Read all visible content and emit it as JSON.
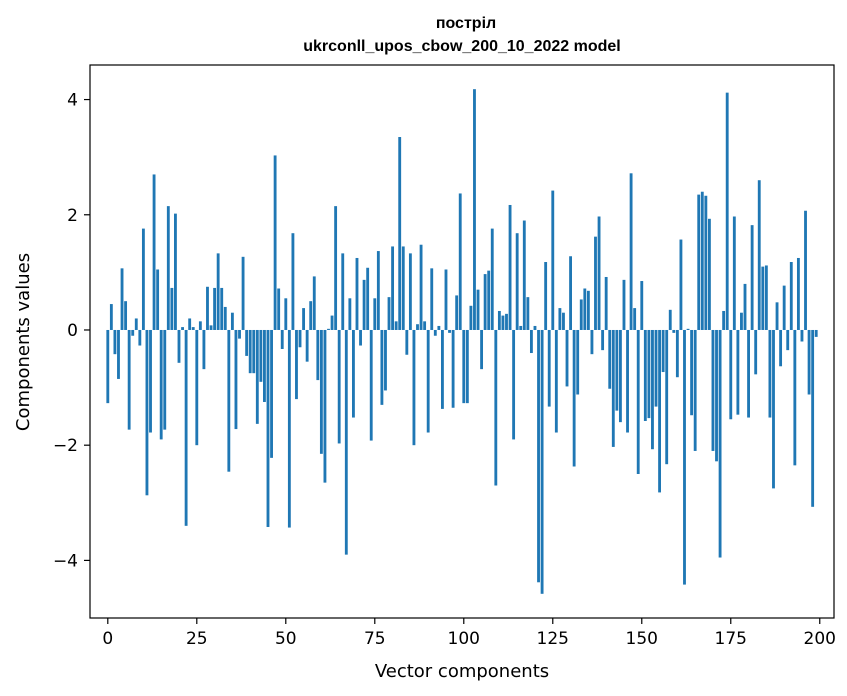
{
  "chart_data": {
    "type": "bar",
    "title_line1": "постріл",
    "title_line2": "ukrconll_upos_cbow_200_10_2022 model",
    "xlabel": "Vector components",
    "ylabel": "Components values",
    "bar_color": "#1f77b4",
    "xlim": [
      -5,
      204
    ],
    "ylim": [
      -5,
      4.6
    ],
    "grid": false,
    "x_ticks": [
      0,
      25,
      50,
      75,
      100,
      125,
      150,
      175,
      200
    ],
    "x_tick_labels": [
      "0",
      "25",
      "50",
      "75",
      "100",
      "125",
      "150",
      "175",
      "200"
    ],
    "y_ticks": [
      -4,
      -2,
      0,
      2,
      4
    ],
    "y_tick_labels": [
      "−4",
      "−2",
      "0",
      "2",
      "4"
    ],
    "x": [
      0,
      1,
      2,
      3,
      4,
      5,
      6,
      7,
      8,
      9,
      10,
      11,
      12,
      13,
      14,
      15,
      16,
      17,
      18,
      19,
      20,
      21,
      22,
      23,
      24,
      25,
      26,
      27,
      28,
      29,
      30,
      31,
      32,
      33,
      34,
      35,
      36,
      37,
      38,
      39,
      40,
      41,
      42,
      43,
      44,
      45,
      46,
      47,
      48,
      49,
      50,
      51,
      52,
      53,
      54,
      55,
      56,
      57,
      58,
      59,
      60,
      61,
      62,
      63,
      64,
      65,
      66,
      67,
      68,
      69,
      70,
      71,
      72,
      73,
      74,
      75,
      76,
      77,
      78,
      79,
      80,
      81,
      82,
      83,
      84,
      85,
      86,
      87,
      88,
      89,
      90,
      91,
      92,
      93,
      94,
      95,
      96,
      97,
      98,
      99,
      100,
      101,
      102,
      103,
      104,
      105,
      106,
      107,
      108,
      109,
      110,
      111,
      112,
      113,
      114,
      115,
      116,
      117,
      118,
      119,
      120,
      121,
      122,
      123,
      124,
      125,
      126,
      127,
      128,
      129,
      130,
      131,
      132,
      133,
      134,
      135,
      136,
      137,
      138,
      139,
      140,
      141,
      142,
      143,
      144,
      145,
      146,
      147,
      148,
      149,
      150,
      151,
      152,
      153,
      154,
      155,
      156,
      157,
      158,
      159,
      160,
      161,
      162,
      163,
      164,
      165,
      166,
      167,
      168,
      169,
      170,
      171,
      172,
      173,
      174,
      175,
      176,
      177,
      178,
      179,
      180,
      181,
      182,
      183,
      184,
      185,
      186,
      187,
      188,
      189,
      190,
      191,
      192,
      193,
      194,
      195,
      196,
      197,
      198,
      199
    ],
    "values": [
      -1.27,
      0.45,
      -0.42,
      -0.85,
      1.07,
      0.5,
      -1.73,
      -0.1,
      0.2,
      -0.27,
      1.76,
      -2.87,
      -1.78,
      2.7,
      1.05,
      -1.9,
      -1.73,
      2.15,
      0.73,
      2.02,
      -0.57,
      0.05,
      -3.4,
      0.2,
      0.05,
      -2.0,
      0.15,
      -0.68,
      0.75,
      0.08,
      0.73,
      1.33,
      0.73,
      0.4,
      -2.46,
      0.3,
      -1.72,
      -0.15,
      1.27,
      -0.45,
      -0.75,
      -0.75,
      -1.63,
      -0.9,
      -1.25,
      -3.42,
      -2.22,
      3.03,
      0.72,
      -0.33,
      0.55,
      -3.43,
      1.68,
      -1.2,
      -0.3,
      0.38,
      -0.55,
      0.5,
      0.93,
      -0.87,
      -2.15,
      -2.65,
      0.02,
      0.25,
      2.15,
      -1.97,
      1.33,
      -3.9,
      0.55,
      -1.52,
      1.25,
      -0.27,
      0.87,
      1.08,
      -1.92,
      0.55,
      1.37,
      -1.3,
      -1.05,
      0.57,
      1.45,
      0.15,
      3.35,
      1.45,
      -0.43,
      1.33,
      -2.0,
      0.1,
      1.48,
      0.15,
      -1.78,
      1.07,
      -0.1,
      0.07,
      -1.37,
      1.05,
      -0.05,
      -1.35,
      0.6,
      2.37,
      -1.27,
      -1.27,
      0.42,
      4.18,
      0.7,
      -0.68,
      0.97,
      1.03,
      1.76,
      -2.7,
      0.33,
      0.25,
      0.28,
      2.17,
      -1.9,
      1.68,
      0.07,
      1.9,
      0.57,
      -0.4,
      0.07,
      -4.38,
      -4.58,
      1.18,
      -1.33,
      2.42,
      -1.78,
      0.38,
      0.3,
      -0.98,
      1.28,
      -2.37,
      -1.12,
      0.53,
      0.72,
      0.68,
      -0.42,
      1.62,
      1.97,
      -0.35,
      0.92,
      -1.02,
      -2.03,
      -1.4,
      -1.6,
      0.87,
      -1.78,
      2.72,
      0.38,
      -2.5,
      0.85,
      -1.58,
      -1.53,
      -2.07,
      -1.33,
      -2.82,
      -0.73,
      -2.33,
      0.35,
      -0.05,
      -0.82,
      1.57,
      -4.42,
      0.02,
      -1.48,
      -2.1,
      2.35,
      2.4,
      2.33,
      1.93,
      -2.1,
      -2.28,
      -3.95,
      0.33,
      4.12,
      -1.55,
      1.97,
      -1.47,
      0.3,
      0.8,
      -1.52,
      1.82,
      -0.77,
      2.6,
      1.1,
      1.12,
      -1.52,
      -2.75,
      0.48,
      -0.63,
      0.77,
      -0.35,
      1.18,
      -2.35,
      1.25,
      -0.2,
      2.07,
      -1.12,
      -3.07,
      -0.12
    ]
  }
}
